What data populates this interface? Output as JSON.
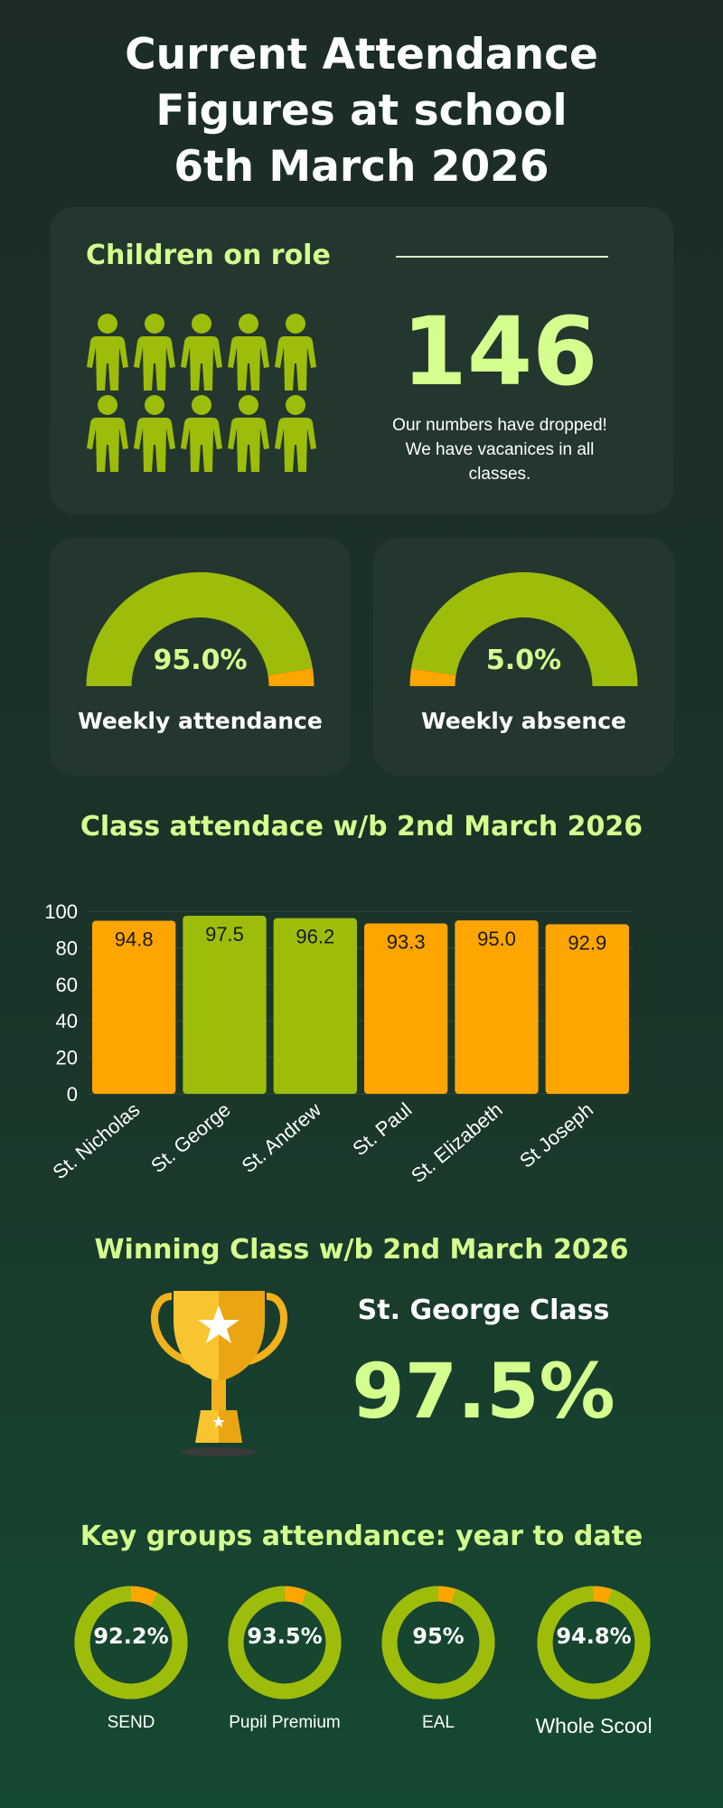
{
  "title": [
    "Current Attendance",
    "Figures at school",
    "6th March 2026"
  ],
  "role": {
    "heading": "Children on role",
    "number": "146",
    "note": [
      "Our numbers have dropped!",
      "We have vacanices in all",
      "classes."
    ],
    "people_icon": "person-icon"
  },
  "gauges": [
    {
      "name": "attendance",
      "label": "Weekly attendance",
      "display": "95.0%",
      "value": 95.0,
      "main_color": "#9dbd0a",
      "rest_color": "#ffa500"
    },
    {
      "name": "absence",
      "label": "Weekly absence",
      "display": "5.0%",
      "value": 5.0,
      "main_color": "#ffa500",
      "rest_color": "#9dbd0a"
    }
  ],
  "chart_heading": "Class attendace w/b 2nd March 2026",
  "chart_data": {
    "type": "bar",
    "categories": [
      "St. Nicholas",
      "St. George",
      "St. Andrew",
      "St. Paul",
      "St. Elizabeth",
      "St Joseph"
    ],
    "values": [
      94.8,
      97.5,
      96.2,
      93.3,
      95.0,
      92.9
    ],
    "value_labels": [
      "94.8",
      "97.5",
      "96.2",
      "93.3",
      "95.0",
      "92.9"
    ],
    "bar_colors": [
      "#ffa500",
      "#9dbd0a",
      "#9dbd0a",
      "#ffa500",
      "#ffa500",
      "#ffa500"
    ],
    "yticks": [
      "0",
      "20",
      "40",
      "60",
      "80",
      "100"
    ],
    "ylim": [
      0,
      100
    ],
    "xlabel": "",
    "ylabel": ""
  },
  "winner": {
    "heading": "Winning Class w/b 2nd March 2026",
    "name": "St. George Class",
    "percent": "97.5%",
    "icon": "trophy-icon"
  },
  "key_groups": {
    "heading": "Key groups attendance: year to date",
    "items": [
      {
        "label": "SEND",
        "display": "92.2%",
        "value": 92.2
      },
      {
        "label": "Pupil Premium",
        "display": "93.5%",
        "value": 93.5
      },
      {
        "label": "EAL",
        "display": "95%",
        "value": 95
      },
      {
        "label": "Whole Scool",
        "display": "94.8%",
        "value": 94.8
      }
    ],
    "main_color": "#9dbd0a",
    "rest_color": "#ffa500"
  }
}
